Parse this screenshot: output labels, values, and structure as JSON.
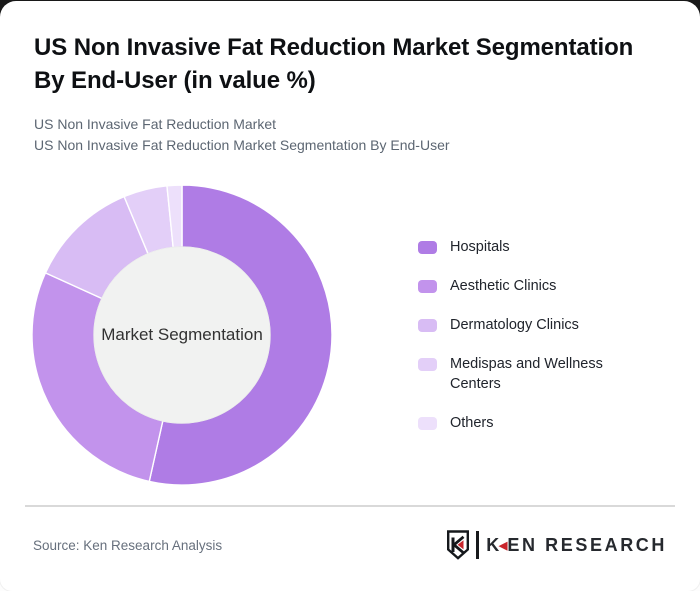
{
  "header": {
    "title_line1": "US Non Invasive Fat Reduction Market Segmentation",
    "title_line2": "By End-User (in value %)",
    "subtitle_line1": "US Non Invasive Fat Reduction Market",
    "subtitle_line2": "US Non Invasive Fat Reduction Market Segmentation By End-User"
  },
  "chart_data": {
    "type": "donut",
    "title": "US Non Invasive Fat Reduction Market Segmentation By End-User (in value %)",
    "center_label": "Market Segmentation",
    "value_unit": "value %",
    "legend_position": "right",
    "start_angle_deg": 0,
    "direction": "clockwise",
    "inner_radius_ratio": 0.58,
    "series": [
      {
        "name": "Hospitals",
        "value": 53.5,
        "color": "#af7ce5"
      },
      {
        "name": "Aesthetic Clinics",
        "value": 28.3,
        "color": "#c293ec"
      },
      {
        "name": "Dermatology Clinics",
        "value": 11.9,
        "color": "#d8bcf4"
      },
      {
        "name": "Medispas and Wellness Centers",
        "value": 4.7,
        "color": "#e3cff8"
      },
      {
        "name": "Others",
        "value": 1.6,
        "color": "#ede0fb"
      }
    ],
    "inner_circle_color": "#f1f2f1"
  },
  "footer": {
    "source": "Source: Ken Research Analysis",
    "logo": {
      "brand_k": "K",
      "brand_rest": "EN RESEARCH",
      "accent_color": "#c9252c"
    }
  }
}
